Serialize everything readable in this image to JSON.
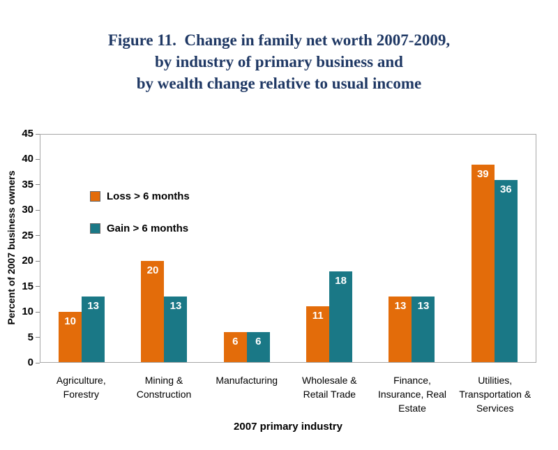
{
  "title": "Figure 11.  Change in family net worth 2007-2009,\nby industry of primary business and\nby wealth change relative to usual income",
  "chart_data": {
    "type": "bar",
    "categories": [
      "Agriculture,\nForestry",
      "Mining &\nConstruction",
      "Manufacturing",
      "Wholesale &\nRetail Trade",
      "Finance,\nInsurance, Real\nEstate",
      "Utilities,\nTransportation &\nServices"
    ],
    "series": [
      {
        "name": "Loss > 6 months",
        "color": "#E36C0A",
        "values": [
          10,
          20,
          6,
          11,
          13,
          39
        ]
      },
      {
        "name": "Gain > 6 months",
        "color": "#1A7886",
        "values": [
          13,
          13,
          6,
          18,
          13,
          36
        ]
      }
    ],
    "title": "Figure 11.  Change in family net worth 2007-2009, by industry of primary business and by wealth change relative to usual income",
    "xlabel": "2007 primary industry",
    "ylabel": "Percent of 2007 business owners",
    "ylim": [
      0,
      45
    ],
    "ytick_step": 5,
    "grid": false,
    "legend_position": "upper-left-inside",
    "data_label_color": "#ffffff"
  },
  "colors": {
    "title_text": "#1F3864",
    "plot_border": "#A6A6A6",
    "loss_series": "#E36C0A",
    "gain_series": "#1A7886"
  }
}
